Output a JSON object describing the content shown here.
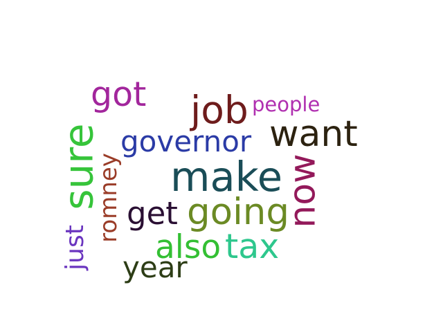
{
  "words": [
    {
      "text": "make",
      "color": "#1a4d57"
    },
    {
      "text": "job",
      "color": "#6e1c1c"
    },
    {
      "text": "sure",
      "color": "#36c43a"
    },
    {
      "text": "going",
      "color": "#6b8a24"
    },
    {
      "text": "now",
      "color": "#93195a"
    },
    {
      "text": "want",
      "color": "#2c2210"
    },
    {
      "text": "tax",
      "color": "#2ec78d"
    },
    {
      "text": "also",
      "color": "#33bf33"
    },
    {
      "text": "got",
      "color": "#a2269c"
    },
    {
      "text": "governor",
      "color": "#2b3ba6"
    },
    {
      "text": "get",
      "color": "#2a0f33"
    },
    {
      "text": "year",
      "color": "#2d3d16"
    },
    {
      "text": "romney",
      "color": "#9a3c28"
    },
    {
      "text": "just",
      "color": "#6a35bf"
    },
    {
      "text": "people",
      "color": "#b030b0"
    }
  ]
}
